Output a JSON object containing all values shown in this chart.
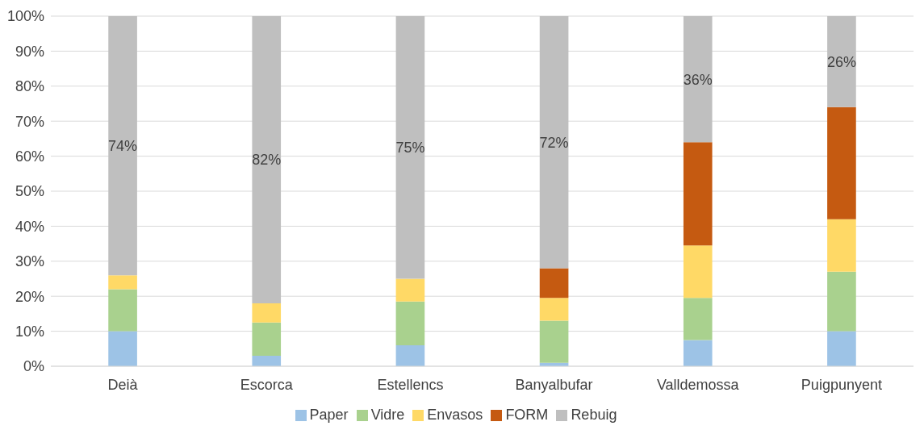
{
  "chart_data": {
    "type": "bar",
    "stacked": true,
    "categories": [
      "Deià",
      "Escorca",
      "Estellencs",
      "Banyalbufar",
      "Valldemossa",
      "Puigpunyent"
    ],
    "series": [
      {
        "name": "Paper",
        "color": "#9dc3e6",
        "values": [
          10,
          3,
          6,
          1,
          7.5,
          10
        ]
      },
      {
        "name": "Vidre",
        "color": "#a9d18e",
        "values": [
          12,
          9.5,
          12.5,
          12,
          12,
          17
        ]
      },
      {
        "name": "Envasos",
        "color": "#ffd966",
        "values": [
          4,
          5.5,
          6.5,
          6.5,
          15,
          15
        ]
      },
      {
        "name": "FORM",
        "color": "#c55a11",
        "values": [
          0,
          0,
          0,
          8.5,
          29.5,
          32
        ]
      },
      {
        "name": "Rebuig",
        "color": "#bfbfbf",
        "values": [
          74,
          82,
          75,
          72,
          36,
          26
        ],
        "value_labels": [
          "74%",
          "82%",
          "75%",
          "72%",
          "36%",
          "26%"
        ]
      }
    ],
    "ylim": [
      0,
      100
    ],
    "yticks": [
      {
        "value": 0,
        "label": "0%"
      },
      {
        "value": 10,
        "label": "10%"
      },
      {
        "value": 20,
        "label": "20%"
      },
      {
        "value": 30,
        "label": "30%"
      },
      {
        "value": 40,
        "label": "40%"
      },
      {
        "value": 50,
        "label": "50%"
      },
      {
        "value": 60,
        "label": "60%"
      },
      {
        "value": 70,
        "label": "70%"
      },
      {
        "value": 80,
        "label": "80%"
      },
      {
        "value": 90,
        "label": "90%"
      },
      {
        "value": 100,
        "label": "100%"
      }
    ],
    "grid": "y",
    "legend": "bottom"
  }
}
